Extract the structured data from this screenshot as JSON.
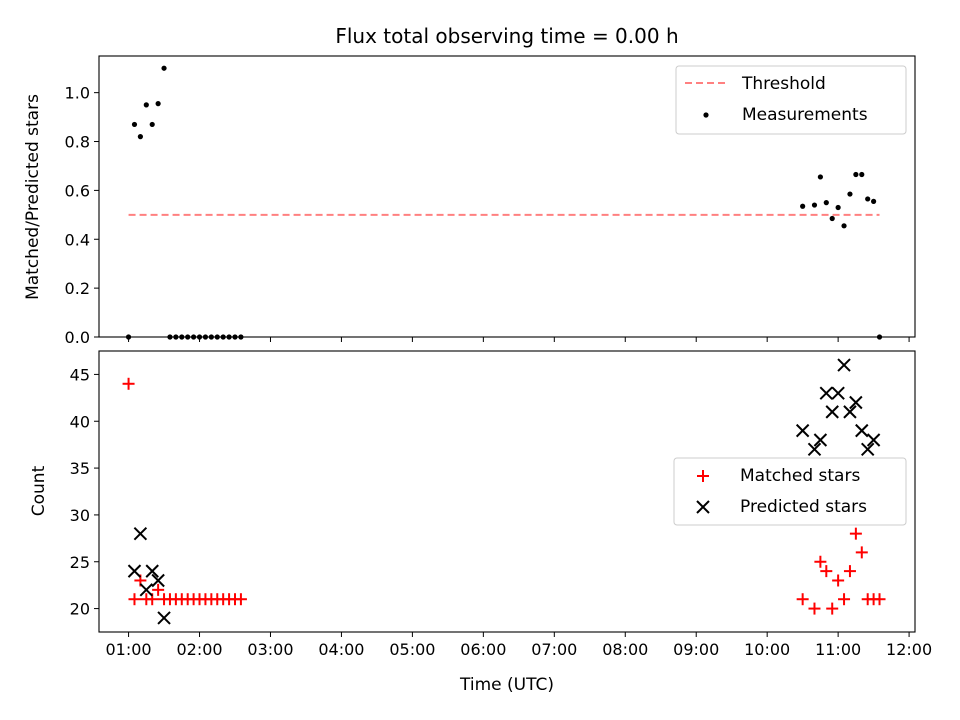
{
  "chart_data": [
    {
      "type": "scatter",
      "title": "Flux total observing time = 0.00 h",
      "xlabel": "",
      "ylabel": "Matched/Predicted stars",
      "xlim": [
        "00:35",
        "12:05"
      ],
      "ylim": [
        0,
        1.15
      ],
      "yticks": [
        "0.0",
        "0.2",
        "0.4",
        "0.6",
        "0.8",
        "1.0"
      ],
      "grid": false,
      "legend_position": "top-right",
      "threshold": {
        "name": "Threshold",
        "value": 0.5,
        "x_range": [
          "01:00",
          "11:35"
        ],
        "color": "#ff8080"
      },
      "series": [
        {
          "name": "Measurements",
          "color": "#000000",
          "points": [
            [
              "01:00",
              0.0
            ],
            [
              "01:05",
              0.87
            ],
            [
              "01:10",
              0.82
            ],
            [
              "01:15",
              0.95
            ],
            [
              "01:20",
              0.87
            ],
            [
              "01:25",
              0.955
            ],
            [
              "01:30",
              1.1
            ],
            [
              "01:35",
              0.0
            ],
            [
              "01:40",
              0.0
            ],
            [
              "01:45",
              0.0
            ],
            [
              "01:50",
              0.0
            ],
            [
              "01:55",
              0.0
            ],
            [
              "02:00",
              0.0
            ],
            [
              "02:05",
              0.0
            ],
            [
              "02:10",
              0.0
            ],
            [
              "02:15",
              0.0
            ],
            [
              "02:20",
              0.0
            ],
            [
              "02:25",
              0.0
            ],
            [
              "02:30",
              0.0
            ],
            [
              "02:35",
              0.0
            ],
            [
              "10:30",
              0.535
            ],
            [
              "10:40",
              0.54
            ],
            [
              "10:45",
              0.655
            ],
            [
              "10:50",
              0.55
            ],
            [
              "10:55",
              0.485
            ],
            [
              "11:00",
              0.53
            ],
            [
              "11:05",
              0.455
            ],
            [
              "11:10",
              0.585
            ],
            [
              "11:15",
              0.665
            ],
            [
              "11:20",
              0.665
            ],
            [
              "11:25",
              0.565
            ],
            [
              "11:30",
              0.555
            ],
            [
              "11:35",
              0.0
            ]
          ]
        }
      ]
    },
    {
      "type": "scatter",
      "title": "",
      "xlabel": "Time (UTC)",
      "ylabel": "Count",
      "xlim": [
        "00:35",
        "12:05"
      ],
      "ylim": [
        17.5,
        47.5
      ],
      "yticks": [
        "20",
        "25",
        "30",
        "35",
        "40",
        "45"
      ],
      "xticks": [
        "01:00",
        "02:00",
        "03:00",
        "04:00",
        "05:00",
        "06:00",
        "07:00",
        "08:00",
        "09:00",
        "10:00",
        "11:00",
        "12:00"
      ],
      "grid": false,
      "legend_position": "center-right",
      "series": [
        {
          "name": "Matched stars",
          "marker": "plus",
          "color": "#ff0000",
          "points": [
            [
              "01:00",
              44
            ],
            [
              "01:05",
              21
            ],
            [
              "01:10",
              23
            ],
            [
              "01:15",
              21
            ],
            [
              "01:20",
              21
            ],
            [
              "01:25",
              22
            ],
            [
              "01:30",
              21
            ],
            [
              "01:35",
              21
            ],
            [
              "01:40",
              21
            ],
            [
              "01:45",
              21
            ],
            [
              "01:50",
              21
            ],
            [
              "01:55",
              21
            ],
            [
              "02:00",
              21
            ],
            [
              "02:05",
              21
            ],
            [
              "02:10",
              21
            ],
            [
              "02:15",
              21
            ],
            [
              "02:20",
              21
            ],
            [
              "02:25",
              21
            ],
            [
              "02:30",
              21
            ],
            [
              "02:35",
              21
            ],
            [
              "10:30",
              21
            ],
            [
              "10:40",
              20
            ],
            [
              "10:45",
              25
            ],
            [
              "10:50",
              24
            ],
            [
              "10:55",
              20
            ],
            [
              "11:00",
              23
            ],
            [
              "11:05",
              21
            ],
            [
              "11:10",
              24
            ],
            [
              "11:15",
              28
            ],
            [
              "11:20",
              26
            ],
            [
              "11:25",
              21
            ],
            [
              "11:30",
              21
            ],
            [
              "11:35",
              21
            ]
          ]
        },
        {
          "name": "Predicted stars",
          "marker": "x",
          "color": "#000000",
          "points": [
            [
              "01:05",
              24
            ],
            [
              "01:10",
              28
            ],
            [
              "01:15",
              22
            ],
            [
              "01:20",
              24
            ],
            [
              "01:25",
              23
            ],
            [
              "01:30",
              19
            ],
            [
              "10:30",
              39
            ],
            [
              "10:40",
              37
            ],
            [
              "10:45",
              38
            ],
            [
              "10:50",
              43
            ],
            [
              "10:55",
              41
            ],
            [
              "11:00",
              43
            ],
            [
              "11:05",
              46
            ],
            [
              "11:10",
              41
            ],
            [
              "11:15",
              42
            ],
            [
              "11:20",
              39
            ],
            [
              "11:25",
              37
            ],
            [
              "11:30",
              38
            ]
          ]
        }
      ]
    }
  ]
}
